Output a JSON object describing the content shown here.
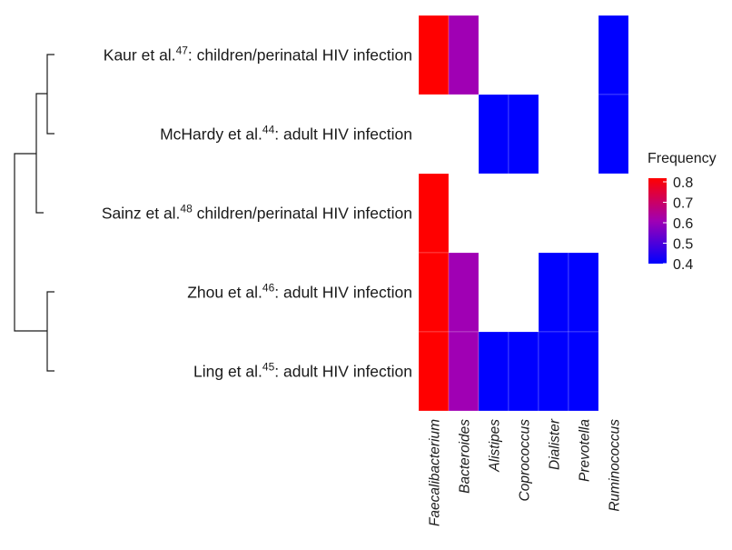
{
  "chart_data": {
    "type": "heatmap",
    "legend": {
      "title": "Frequency",
      "ticks": [
        0.8,
        0.7,
        0.6,
        0.5,
        0.4
      ],
      "range": [
        0.4,
        0.8
      ],
      "color_low": "#0000ff",
      "color_mid": "#a000b4",
      "color_high": "#ff0000"
    },
    "rows": [
      {
        "name": "Kaur et al.",
        "ref": "47",
        "desc": ": children/perinatal HIV infection"
      },
      {
        "name": "McHardy et al.",
        "ref": "44",
        "desc": ": adult HIV infection"
      },
      {
        "name": "Sainz et al.",
        "ref": "48",
        "desc": " children/perinatal HIV infection"
      },
      {
        "name": "Zhou et al.",
        "ref": "46",
        "desc": ": adult HIV infection"
      },
      {
        "name": "Ling et al.",
        "ref": "45",
        "desc": ": adult HIV infection"
      }
    ],
    "columns": [
      "Faecalibacterium",
      "Bacteroides",
      "Alistipes",
      "Coprococcus",
      "Dialister",
      "Prevotella",
      "Ruminococcus"
    ],
    "values": [
      [
        0.8,
        0.6,
        null,
        null,
        null,
        null,
        0.4
      ],
      [
        null,
        null,
        0.4,
        0.4,
        null,
        null,
        0.4
      ],
      [
        0.8,
        null,
        null,
        null,
        null,
        null,
        null
      ],
      [
        0.8,
        0.6,
        null,
        null,
        0.4,
        0.4,
        null
      ],
      [
        0.8,
        0.6,
        0.4,
        0.4,
        0.4,
        0.4,
        null
      ]
    ],
    "dendrogram": "row clustering: ((Kaur, McHardy), Sainz), (Zhou, Ling)"
  }
}
